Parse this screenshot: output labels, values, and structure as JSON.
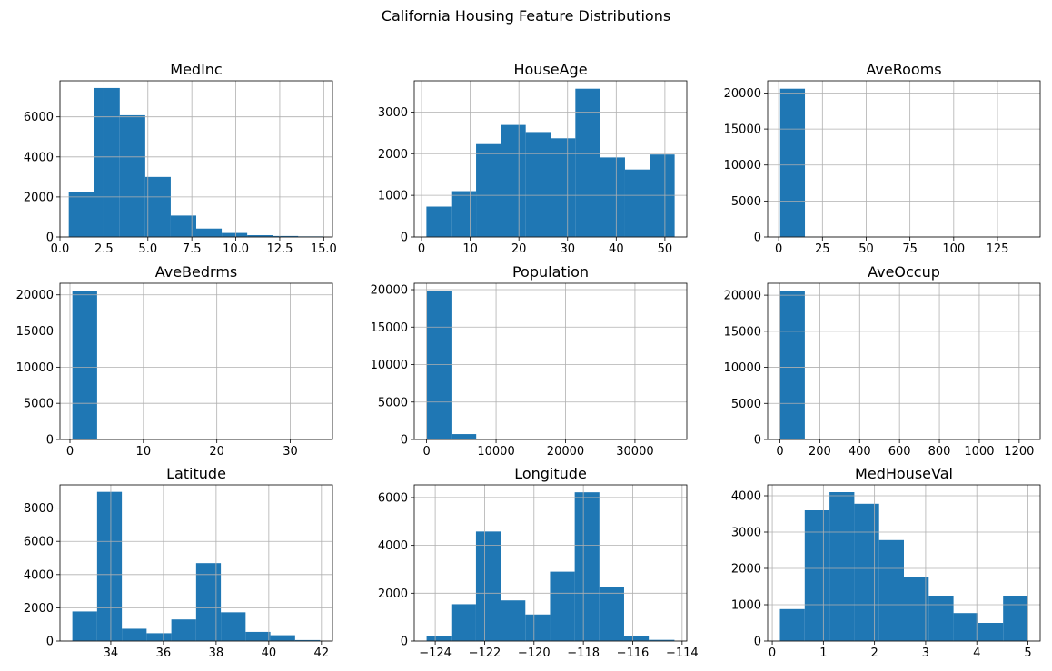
{
  "figure": {
    "suptitle": "California Housing Feature Distributions"
  },
  "style": {
    "bar_color": "#1f77b4",
    "grid_color": "#b0b0b0",
    "axis_color": "#000000"
  },
  "chart_data": [
    {
      "type": "bar",
      "title": "MedInc",
      "grid": true,
      "bin_edges": [
        0.5,
        1.95,
        3.4,
        4.85,
        6.3,
        7.75,
        9.2,
        10.65,
        12.1,
        13.55,
        15.0
      ],
      "values": [
        2250,
        7440,
        6080,
        3000,
        1070,
        420,
        200,
        90,
        50,
        30
      ],
      "xlim": [
        0.0,
        15.5
      ],
      "ylim": [
        0,
        7800
      ],
      "xticks": [
        0.0,
        2.5,
        5.0,
        7.5,
        10.0,
        12.5,
        15.0
      ],
      "xtick_labels": [
        "0.0",
        "2.5",
        "5.0",
        "7.5",
        "10.0",
        "12.5",
        "15.0"
      ],
      "yticks": [
        0,
        2000,
        4000,
        6000
      ],
      "ytick_labels": [
        "0",
        "2000",
        "4000",
        "6000"
      ]
    },
    {
      "type": "bar",
      "title": "HouseAge",
      "grid": true,
      "bin_edges": [
        1,
        6.1,
        11.2,
        16.3,
        21.4,
        26.5,
        31.6,
        36.7,
        41.8,
        46.9,
        52
      ],
      "values": [
        730,
        1100,
        2230,
        2690,
        2520,
        2370,
        3560,
        1910,
        1620,
        1980
      ],
      "xlim": [
        -1.5,
        54.5
      ],
      "ylim": [
        0,
        3750
      ],
      "xticks": [
        0,
        10,
        20,
        30,
        40,
        50
      ],
      "xtick_labels": [
        "0",
        "10",
        "20",
        "30",
        "40",
        "50"
      ],
      "yticks": [
        0,
        1000,
        2000,
        3000
      ],
      "ytick_labels": [
        "0",
        "1000",
        "2000",
        "3000"
      ]
    },
    {
      "type": "bar",
      "title": "AveRooms",
      "grid": true,
      "bin_edges": [
        0.85,
        15.0,
        29.1,
        43.3,
        57.4,
        71.6,
        85.7,
        99.9,
        114.0,
        128.2,
        142.3
      ],
      "values": [
        20600,
        30,
        4,
        2,
        1,
        1,
        1,
        1,
        1,
        1
      ],
      "xlim": [
        -6.3,
        149.4
      ],
      "ylim": [
        0,
        21700
      ],
      "xticks": [
        0,
        25,
        50,
        75,
        100,
        125
      ],
      "xtick_labels": [
        "0",
        "25",
        "50",
        "75",
        "100",
        "125"
      ],
      "yticks": [
        0,
        5000,
        10000,
        15000,
        20000
      ],
      "ytick_labels": [
        "0",
        "5000",
        "10000",
        "15000",
        "20000"
      ]
    },
    {
      "type": "bar",
      "title": "AveBedrms",
      "grid": true,
      "bin_edges": [
        0.33,
        3.7,
        7.05,
        10.4,
        13.75,
        17.1,
        20.45,
        23.8,
        27.15,
        30.5,
        34.07
      ],
      "values": [
        20550,
        60,
        6,
        2,
        1,
        1,
        1,
        1,
        1,
        1
      ],
      "xlim": [
        -1.36,
        35.75
      ],
      "ylim": [
        0,
        21600
      ],
      "xticks": [
        0,
        10,
        20,
        30
      ],
      "xtick_labels": [
        "0",
        "10",
        "20",
        "30"
      ],
      "yticks": [
        0,
        5000,
        10000,
        15000,
        20000
      ],
      "ytick_labels": [
        "0",
        "5000",
        "10000",
        "15000",
        "20000"
      ]
    },
    {
      "type": "bar",
      "title": "Population",
      "grid": true,
      "bin_edges": [
        3,
        3571,
        7139,
        10707,
        14275,
        17843,
        21411,
        24979,
        28547,
        32115,
        35682
      ],
      "values": [
        19850,
        720,
        100,
        20,
        5,
        2,
        1,
        1,
        1,
        1
      ],
      "xlim": [
        -1781,
        37466
      ],
      "ylim": [
        0,
        20850
      ],
      "xticks": [
        0,
        10000,
        20000,
        30000
      ],
      "xtick_labels": [
        "0",
        "10000",
        "20000",
        "30000"
      ],
      "yticks": [
        0,
        5000,
        10000,
        15000,
        20000
      ],
      "ytick_labels": [
        "0",
        "5000",
        "10000",
        "15000",
        "20000"
      ]
    },
    {
      "type": "bar",
      "title": "AveOccup",
      "grid": true,
      "bin_edges": [
        0.69,
        124.98,
        249.26,
        373.55,
        497.83,
        622.12,
        746.4,
        870.69,
        994.97,
        1119.26,
        1243.33
      ],
      "values": [
        20620,
        8,
        2,
        2,
        1,
        1,
        1,
        1,
        1,
        1
      ],
      "xlim": [
        -61.4,
        1305.5
      ],
      "ylim": [
        0,
        21650
      ],
      "xticks": [
        0,
        200,
        400,
        600,
        800,
        1000,
        1200
      ],
      "xtick_labels": [
        "0",
        "200",
        "400",
        "600",
        "800",
        "1000",
        "1200"
      ],
      "yticks": [
        0,
        5000,
        10000,
        15000,
        20000
      ],
      "ytick_labels": [
        "0",
        "5000",
        "10000",
        "15000",
        "20000"
      ]
    },
    {
      "type": "bar",
      "title": "Latitude",
      "grid": true,
      "bin_edges": [
        32.54,
        33.48,
        34.42,
        35.36,
        36.3,
        37.24,
        38.18,
        39.12,
        40.06,
        41.0,
        41.95
      ],
      "values": [
        1780,
        8980,
        740,
        470,
        1300,
        4690,
        1730,
        550,
        350,
        60
      ],
      "xlim": [
        32.07,
        42.42
      ],
      "ylim": [
        0,
        9400
      ],
      "xticks": [
        34,
        36,
        38,
        40,
        42
      ],
      "xtick_labels": [
        "34",
        "36",
        "38",
        "40",
        "42"
      ],
      "yticks": [
        0,
        2000,
        4000,
        6000,
        8000
      ],
      "ytick_labels": [
        "0",
        "2000",
        "4000",
        "6000",
        "8000"
      ]
    },
    {
      "type": "bar",
      "title": "Longitude",
      "grid": true,
      "bin_edges": [
        -124.35,
        -123.35,
        -122.35,
        -121.35,
        -120.35,
        -119.35,
        -118.35,
        -117.35,
        -116.35,
        -115.35,
        -114.31
      ],
      "values": [
        200,
        1540,
        4580,
        1700,
        1110,
        2900,
        6220,
        2240,
        200,
        50
      ],
      "xlim": [
        -124.85,
        -113.81
      ],
      "ylim": [
        0,
        6530
      ],
      "xticks": [
        -124,
        -122,
        -120,
        -118,
        -116,
        -114
      ],
      "xtick_labels": [
        "−124",
        "−122",
        "−120",
        "−118",
        "−116",
        "−114"
      ],
      "yticks": [
        0,
        2000,
        4000,
        6000
      ],
      "ytick_labels": [
        "0",
        "2000",
        "4000",
        "6000"
      ]
    },
    {
      "type": "bar",
      "title": "MedHouseVal",
      "grid": true,
      "bin_edges": [
        0.15,
        0.635,
        1.12,
        1.605,
        2.09,
        2.575,
        3.06,
        3.545,
        4.03,
        4.515,
        5.0
      ],
      "values": [
        880,
        3600,
        4100,
        3780,
        2780,
        1770,
        1250,
        770,
        500,
        1250
      ],
      "xlim": [
        -0.09,
        5.24
      ],
      "ylim": [
        0,
        4300
      ],
      "xticks": [
        0,
        1,
        2,
        3,
        4,
        5
      ],
      "xtick_labels": [
        "0",
        "1",
        "2",
        "3",
        "4",
        "5"
      ],
      "yticks": [
        0,
        1000,
        2000,
        3000,
        4000
      ],
      "ytick_labels": [
        "0",
        "1000",
        "2000",
        "3000",
        "4000"
      ]
    }
  ]
}
